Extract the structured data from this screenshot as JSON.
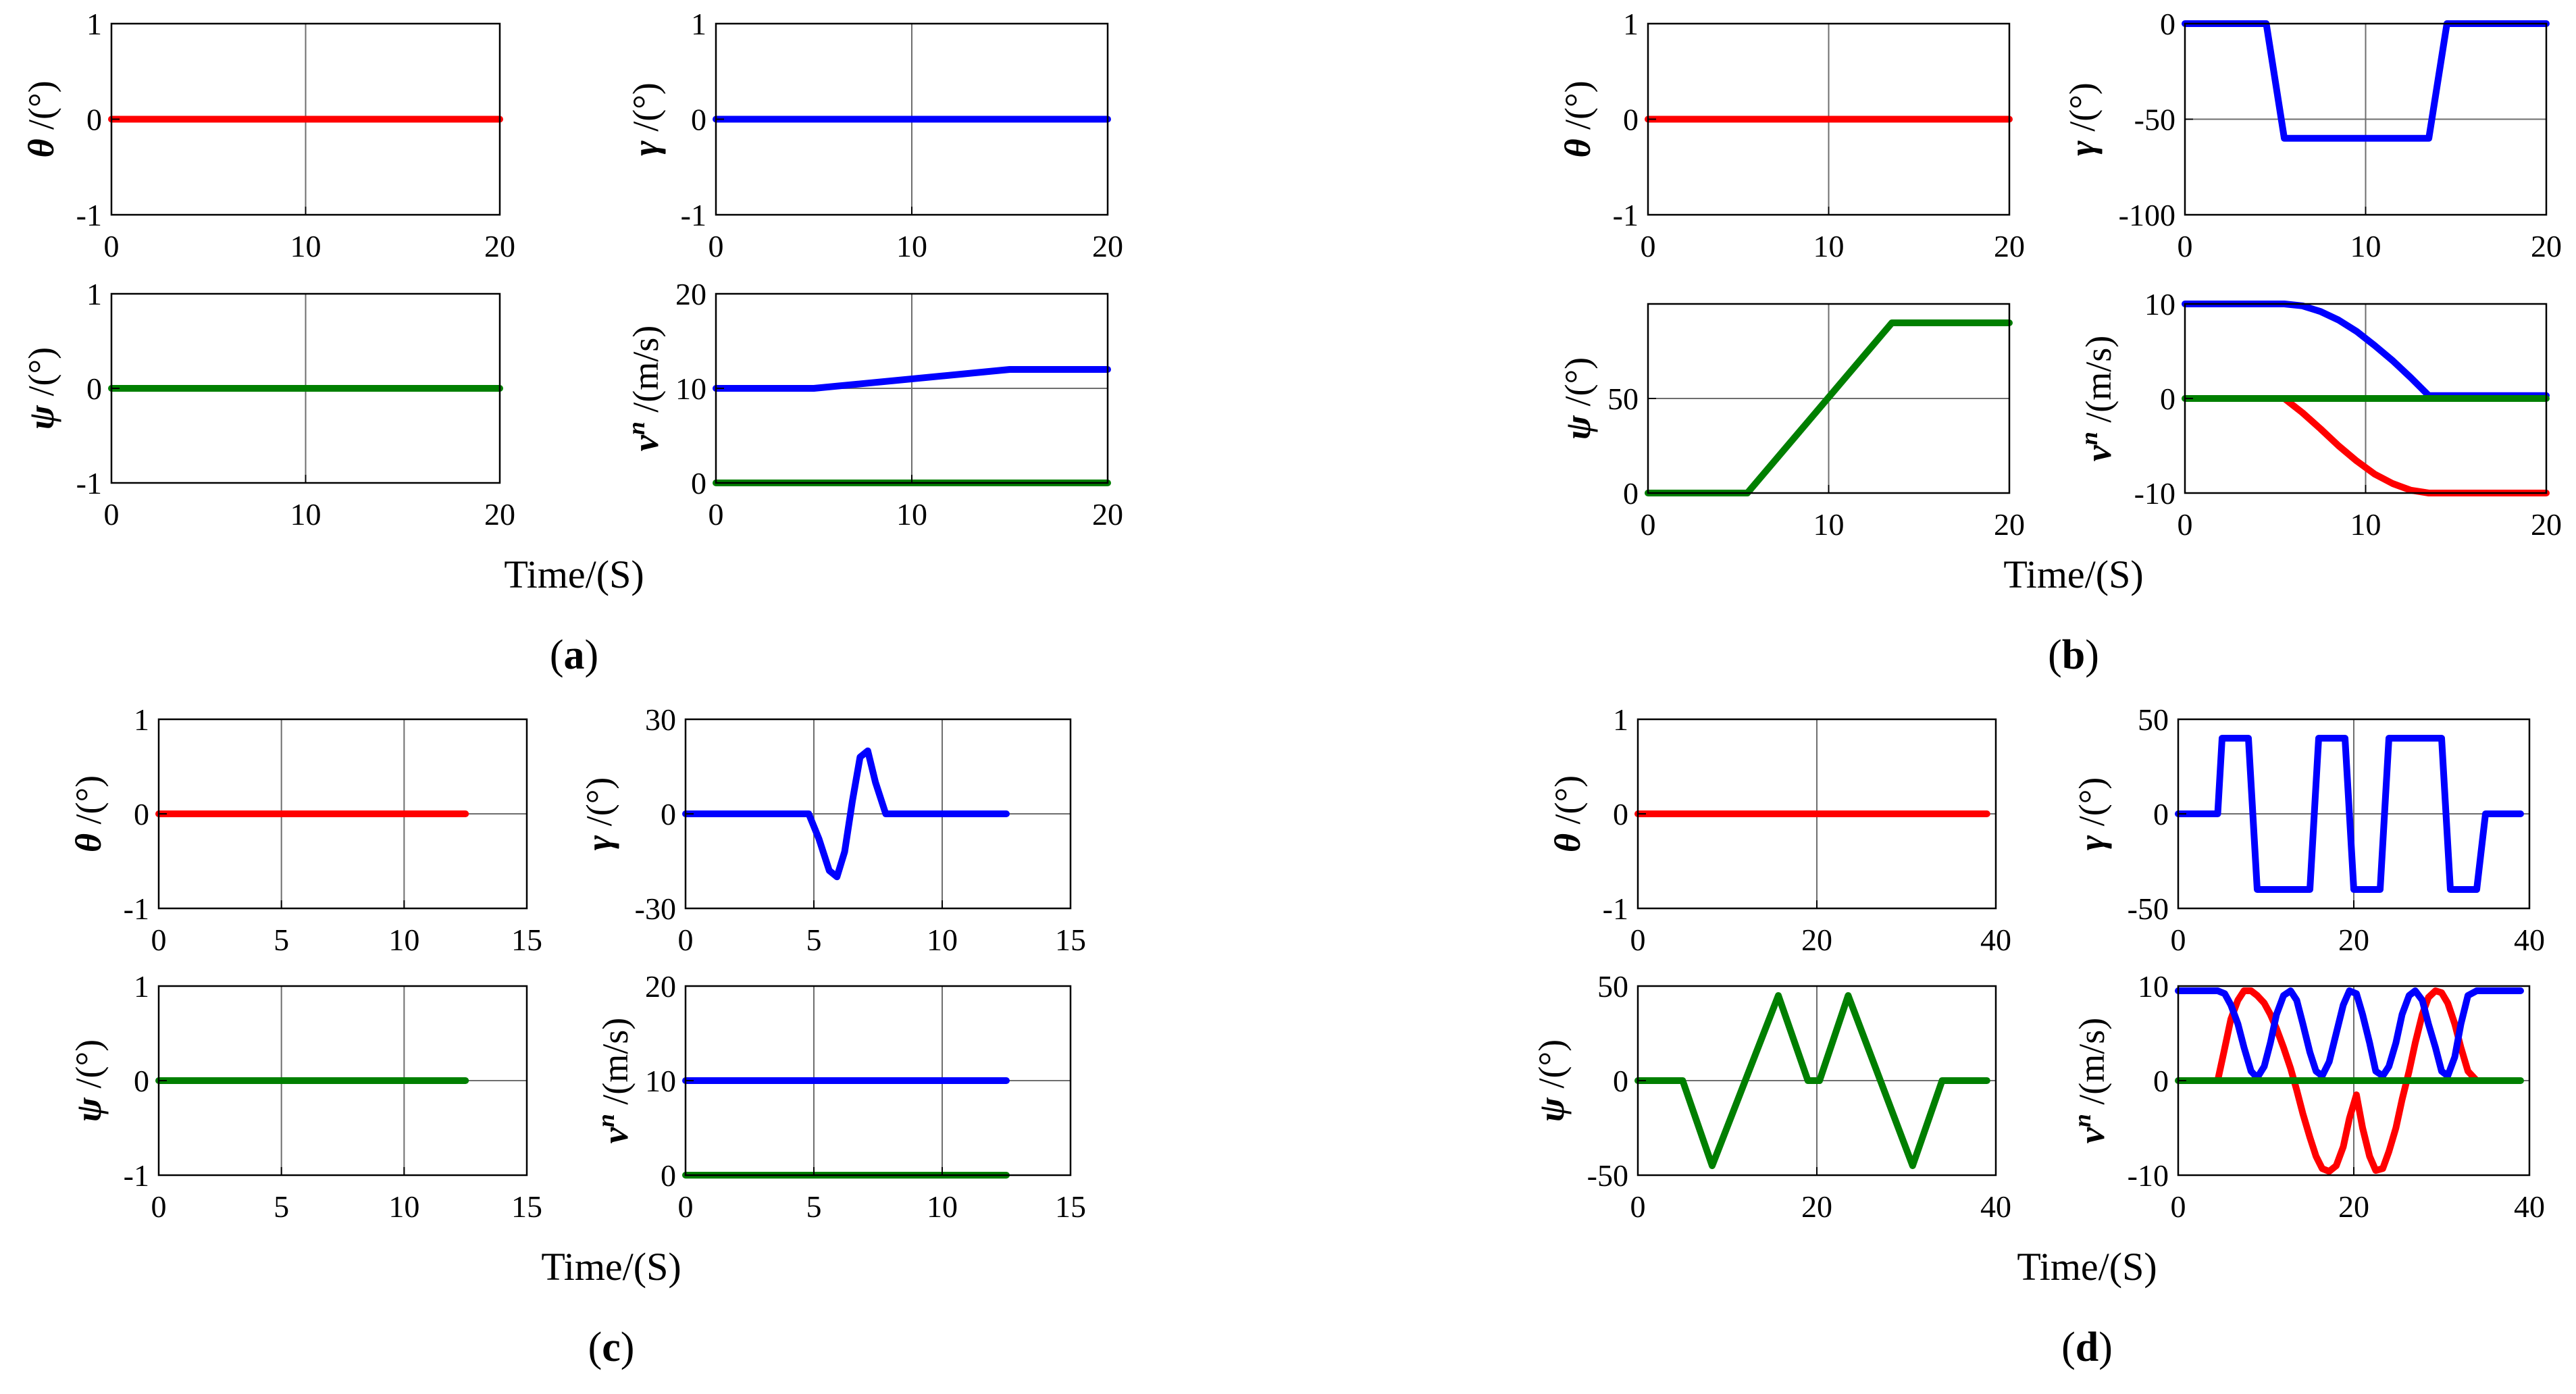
{
  "colors": {
    "red": "#ff0000",
    "blue": "#0000ff",
    "green": "#007f00",
    "grid": "#6e6e6e",
    "axis": "#000000"
  },
  "figure": {
    "panels": [
      {
        "label": "(a)",
        "xlabel": "Time/(S)"
      },
      {
        "label": "(b)",
        "xlabel": "Time/(S)"
      },
      {
        "label": "(c)",
        "xlabel": "Time/(S)"
      },
      {
        "label": "(d)",
        "xlabel": "Time/(S)"
      }
    ]
  },
  "chart_data": [
    {
      "type": "line",
      "panel": "a",
      "title": "",
      "ylabel": {
        "sym": "θ",
        "unit": " /(°)"
      },
      "xlim": [
        0,
        20
      ],
      "ylim": [
        -1,
        1
      ],
      "xticks": [
        0,
        10,
        20
      ],
      "yticks": [
        -1,
        0,
        1
      ],
      "grid": true,
      "series": [
        {
          "color": "red",
          "x": [
            0,
            20
          ],
          "y": [
            0,
            0
          ]
        }
      ]
    },
    {
      "type": "line",
      "panel": "a",
      "title": "",
      "ylabel": {
        "sym": "γ",
        "unit": " /(°)"
      },
      "xlim": [
        0,
        20
      ],
      "ylim": [
        -1,
        1
      ],
      "xticks": [
        0,
        10,
        20
      ],
      "yticks": [
        -1,
        0,
        1
      ],
      "grid": true,
      "series": [
        {
          "color": "blue",
          "x": [
            0,
            20
          ],
          "y": [
            0,
            0
          ]
        }
      ]
    },
    {
      "type": "line",
      "panel": "a",
      "title": "",
      "ylabel": {
        "sym": "ψ",
        "unit": " /(°)"
      },
      "xlim": [
        0,
        20
      ],
      "ylim": [
        -1,
        1
      ],
      "xticks": [
        0,
        10,
        20
      ],
      "yticks": [
        -1,
        0,
        1
      ],
      "grid": true,
      "series": [
        {
          "color": "green",
          "x": [
            0,
            20
          ],
          "y": [
            0,
            0
          ]
        }
      ]
    },
    {
      "type": "line",
      "panel": "a",
      "title": "",
      "ylabel": {
        "sym": "v",
        "sup": "n",
        "unit": " /(m/s)"
      },
      "xlim": [
        0,
        20
      ],
      "ylim": [
        0,
        20
      ],
      "xticks": [
        0,
        10,
        20
      ],
      "yticks": [
        0,
        10,
        20
      ],
      "grid": true,
      "series": [
        {
          "color": "blue",
          "x": [
            0,
            5,
            15,
            20
          ],
          "y": [
            10,
            10,
            12,
            12
          ]
        },
        {
          "color": "green",
          "x": [
            0,
            20
          ],
          "y": [
            0,
            0
          ]
        }
      ]
    },
    {
      "type": "line",
      "panel": "b",
      "title": "",
      "ylabel": {
        "sym": "θ",
        "unit": " /(°)"
      },
      "xlim": [
        0,
        20
      ],
      "ylim": [
        -1,
        1
      ],
      "xticks": [
        0,
        10,
        20
      ],
      "yticks": [
        -1,
        0,
        1
      ],
      "grid": true,
      "series": [
        {
          "color": "red",
          "x": [
            0,
            20
          ],
          "y": [
            0,
            0
          ]
        }
      ]
    },
    {
      "type": "line",
      "panel": "b",
      "title": "",
      "ylabel": {
        "sym": "γ",
        "unit": " /(°)"
      },
      "xlim": [
        0,
        20
      ],
      "ylim": [
        -100,
        0
      ],
      "xticks": [
        0,
        10,
        20
      ],
      "yticks": [
        -100,
        -50,
        0
      ],
      "grid": true,
      "series": [
        {
          "color": "blue",
          "x": [
            0,
            4.5,
            5.5,
            13.5,
            14.5,
            20
          ],
          "y": [
            0,
            0,
            -60,
            -60,
            0,
            0
          ]
        }
      ]
    },
    {
      "type": "line",
      "panel": "b",
      "title": "",
      "ylabel": {
        "sym": "ψ",
        "unit": " /(°)"
      },
      "xlim": [
        0,
        20
      ],
      "ylim": [
        0,
        100
      ],
      "xticks": [
        0,
        10,
        20
      ],
      "yticks": [
        0,
        50
      ],
      "grid": true,
      "series": [
        {
          "color": "green",
          "x": [
            0,
            5.5,
            13.5,
            20
          ],
          "y": [
            0,
            0,
            90,
            90
          ]
        }
      ]
    },
    {
      "type": "line",
      "panel": "b",
      "title": "",
      "ylabel": {
        "sym": "v",
        "sup": "n",
        "unit": " /(m/s)"
      },
      "xlim": [
        0,
        20
      ],
      "ylim": [
        -10,
        10
      ],
      "xticks": [
        0,
        10,
        20
      ],
      "yticks": [
        -10,
        0,
        10
      ],
      "grid": true,
      "series": [
        {
          "color": "blue",
          "x": [
            0,
            5.5,
            6.5,
            7.5,
            8.5,
            9.5,
            10.5,
            11.5,
            12.5,
            13.5,
            20
          ],
          "y": [
            10,
            10,
            9.8,
            9.2,
            8.3,
            7.1,
            5.6,
            4.0,
            2.2,
            0.3,
            0.3
          ]
        },
        {
          "color": "red",
          "x": [
            5.5,
            6.5,
            7.5,
            8.5,
            9.5,
            10.5,
            11.5,
            12.5,
            13.5,
            20
          ],
          "y": [
            0,
            -1.5,
            -3.2,
            -5.0,
            -6.6,
            -8.0,
            -9.0,
            -9.7,
            -10,
            -10
          ]
        },
        {
          "color": "green",
          "x": [
            0,
            20
          ],
          "y": [
            0,
            0
          ]
        }
      ]
    },
    {
      "type": "line",
      "panel": "c",
      "title": "",
      "ylabel": {
        "sym": "θ",
        "unit": " /(°)"
      },
      "xlim": [
        0,
        15
      ],
      "ylim": [
        -1,
        1
      ],
      "xticks": [
        0,
        5,
        10,
        15
      ],
      "yticks": [
        -1,
        0,
        1
      ],
      "grid": true,
      "series": [
        {
          "color": "red",
          "x": [
            0,
            12.5
          ],
          "y": [
            0,
            0
          ]
        }
      ]
    },
    {
      "type": "line",
      "panel": "c",
      "title": "",
      "ylabel": {
        "sym": "γ",
        "unit": " /(°)"
      },
      "xlim": [
        0,
        15
      ],
      "ylim": [
        -30,
        30
      ],
      "xticks": [
        0,
        5,
        10,
        15
      ],
      "yticks": [
        -30,
        0,
        30
      ],
      "grid": true,
      "series": [
        {
          "color": "blue",
          "x": [
            0,
            4.8,
            5.2,
            5.6,
            5.9,
            6.2,
            6.5,
            6.8,
            7.1,
            7.4,
            7.8,
            12.5
          ],
          "y": [
            0,
            0,
            -8,
            -18,
            -20,
            -12,
            4,
            18,
            20,
            10,
            0,
            0
          ]
        }
      ]
    },
    {
      "type": "line",
      "panel": "c",
      "title": "",
      "ylabel": {
        "sym": "ψ",
        "unit": " /(°)"
      },
      "xlim": [
        0,
        15
      ],
      "ylim": [
        -1,
        1
      ],
      "xticks": [
        0,
        5,
        10,
        15
      ],
      "yticks": [
        -1,
        0,
        1
      ],
      "grid": true,
      "series": [
        {
          "color": "green",
          "x": [
            0,
            12.5
          ],
          "y": [
            0,
            0
          ]
        }
      ]
    },
    {
      "type": "line",
      "panel": "c",
      "title": "",
      "ylabel": {
        "sym": "v",
        "sup": "n",
        "unit": " /(m/s)"
      },
      "xlim": [
        0,
        15
      ],
      "ylim": [
        0,
        20
      ],
      "xticks": [
        0,
        5,
        10,
        15
      ],
      "yticks": [
        0,
        10,
        20
      ],
      "grid": true,
      "series": [
        {
          "color": "blue",
          "x": [
            0,
            12.5
          ],
          "y": [
            10,
            10
          ]
        },
        {
          "color": "green",
          "x": [
            0,
            12.5
          ],
          "y": [
            0,
            0
          ]
        }
      ]
    },
    {
      "type": "line",
      "panel": "d",
      "title": "",
      "ylabel": {
        "sym": "θ",
        "unit": " /(°)"
      },
      "xlim": [
        0,
        40
      ],
      "ylim": [
        -1,
        1
      ],
      "xticks": [
        0,
        20,
        40
      ],
      "yticks": [
        -1,
        0,
        1
      ],
      "grid": true,
      "series": [
        {
          "color": "red",
          "x": [
            0,
            39
          ],
          "y": [
            0,
            0
          ]
        }
      ]
    },
    {
      "type": "line",
      "panel": "d",
      "title": "",
      "ylabel": {
        "sym": "γ",
        "unit": " /(°)"
      },
      "xlim": [
        0,
        40
      ],
      "ylim": [
        -50,
        50
      ],
      "xticks": [
        0,
        20,
        40
      ],
      "yticks": [
        -50,
        0,
        50
      ],
      "grid": true,
      "series": [
        {
          "color": "blue",
          "x": [
            0,
            4.5,
            5,
            8,
            9,
            15,
            16,
            19,
            20,
            23,
            24,
            30,
            31,
            34,
            35,
            39
          ],
          "y": [
            0,
            0,
            40,
            40,
            -40,
            -40,
            40,
            40,
            -40,
            -40,
            40,
            40,
            -40,
            -40,
            0,
            0
          ]
        }
      ]
    },
    {
      "type": "line",
      "panel": "d",
      "title": "",
      "ylabel": {
        "sym": "ψ",
        "unit": " /(°)"
      },
      "xlim": [
        0,
        40
      ],
      "ylim": [
        -50,
        50
      ],
      "xticks": [
        0,
        20,
        40
      ],
      "yticks": [
        -50,
        0,
        50
      ],
      "grid": true,
      "series": [
        {
          "color": "green",
          "x": [
            0,
            5,
            8.3,
            15.7,
            19,
            20.3,
            23.5,
            30.7,
            34,
            39
          ],
          "y": [
            0,
            0,
            -45,
            45,
            0,
            0,
            45,
            -45,
            0,
            0
          ]
        }
      ]
    },
    {
      "type": "line",
      "panel": "d",
      "title": "",
      "ylabel": {
        "sym": "v",
        "sup": "n",
        "unit": " /(m/s)"
      },
      "xlim": [
        0,
        40
      ],
      "ylim": [
        -10,
        10
      ],
      "xticks": [
        0,
        20,
        40
      ],
      "yticks": [
        -10,
        0,
        10
      ],
      "grid": true,
      "series": [
        {
          "color": "red",
          "x": [
            4.5,
            5.2,
            6.0,
            6.8,
            7.5,
            8.3,
            9.0,
            9.8,
            10.5,
            11.2,
            12.0,
            12.8,
            13.5,
            14.2,
            15.0,
            15.7,
            16.4,
            17.2,
            18.0,
            18.8,
            19.5,
            20.3,
            21.0,
            21.8,
            22.5,
            23.3,
            24.0,
            24.8,
            25.5,
            26.3,
            27.0,
            27.8,
            28.5,
            29.3,
            30.0,
            30.7,
            31.5,
            32.2,
            33.0,
            34.0
          ],
          "y": [
            0,
            3,
            6.5,
            8.5,
            9.5,
            9.5,
            9.0,
            8.2,
            7.0,
            5.5,
            3.5,
            1.3,
            -1,
            -3.5,
            -6,
            -8,
            -9.3,
            -9.6,
            -9,
            -7,
            -4,
            -1.5,
            -5,
            -8,
            -9.5,
            -9.3,
            -7.5,
            -5,
            -2,
            1,
            4,
            7,
            8.8,
            9.5,
            9.3,
            8.2,
            6,
            3.5,
            1,
            0
          ]
        },
        {
          "color": "blue",
          "x": [
            0,
            4.5,
            5.3,
            6.0,
            6.8,
            7.5,
            8.3,
            9.0,
            9.8,
            10.5,
            11.2,
            12.0,
            12.8,
            13.5,
            14.2,
            15.0,
            15.7,
            16.4,
            17.2,
            18.0,
            18.8,
            19.5,
            20.3,
            21.0,
            21.8,
            22.5,
            23.3,
            24.0,
            24.8,
            25.5,
            26.3,
            27.0,
            27.8,
            28.5,
            29.3,
            30.0,
            30.7,
            31.5,
            32.2,
            33.0,
            34.0,
            39
          ],
          "y": [
            9.5,
            9.5,
            9.2,
            8,
            6,
            3.5,
            1,
            0.3,
            1.5,
            4,
            7,
            9,
            9.5,
            8.5,
            6,
            3,
            1,
            0.5,
            2,
            5,
            8,
            9.5,
            9.2,
            7,
            4,
            1,
            0.5,
            1.5,
            4,
            7,
            9,
            9.5,
            8.5,
            6,
            3.5,
            1,
            0.5,
            2.5,
            6,
            9,
            9.5,
            9.5
          ]
        },
        {
          "color": "green",
          "x": [
            0,
            39
          ],
          "y": [
            0,
            0
          ]
        }
      ]
    }
  ]
}
